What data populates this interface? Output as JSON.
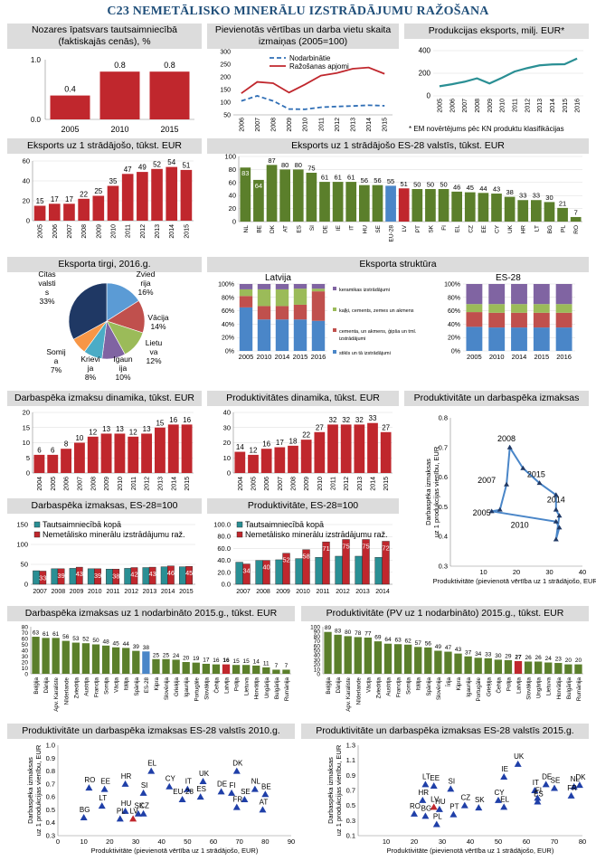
{
  "title": "C23 NEMETĀLISKO MINERĀLU IZSTRĀDĀJUMU RAŽOŠANA",
  "colors": {
    "red": "#c0272d",
    "green": "#5b7f2b",
    "teal": "#2a8f94",
    "blue": "#4a86c8",
    "navy": "#1f3864",
    "header": "#dcdcdc"
  },
  "panels": {
    "p1": {
      "title": "Nozares īpatsvars tautsaimniecībā (faktiskajās cenās), %"
    },
    "p2": {
      "title": "Pievienotās vērtības un darba vietu skaita izmaiņas (2005=100)"
    },
    "p3": {
      "title": "Produkcijas eksports, milj. EUR*",
      "note": "* EM novērtējums pēc KN produktu klasifikācijas"
    },
    "p4": {
      "title": "Eksports uz 1 strādājošo, tūkst. EUR"
    },
    "p5": {
      "title": "Eksports uz 1 strādājošo ES-28 valstīs, tūkst. EUR"
    },
    "p6": {
      "title": "Eksporta tirgi, 2016.g."
    },
    "p7": {
      "title": "Eksporta struktūra",
      "sub_lv": "Latvija",
      "sub_es": "ES-28"
    },
    "p8": {
      "title": "Darbaspēka izmaksu dinamika, tūkst. EUR"
    },
    "p9": {
      "title": "Produktivitātes dinamika, tūkst. EUR"
    },
    "p10": {
      "title": "Produktivitāte un darbaspēka izmaksas"
    },
    "p11": {
      "title": "Darbaspēka izmaksas, ES-28=100"
    },
    "p12": {
      "title": "Produktivitāte, ES-28=100"
    },
    "p13": {
      "title": "Darbaspēka izmaksas uz 1 nodarbināto 2015.g., tūkst. EUR"
    },
    "p14": {
      "title": "Produktivitāte (PV uz 1 nodarbināto) 2015.g., tūkst. EUR"
    },
    "p15": {
      "title": "Produktivitāte un darbaspēka izmaksas ES-28 valstīs 2010.g."
    },
    "p16": {
      "title": "Produktivitāte un darbaspēka izmaksas ES-28 valstīs 2015.g."
    }
  },
  "chart_data": [
    {
      "id": "share",
      "type": "bar",
      "categories": [
        "2005",
        "2010",
        "2015"
      ],
      "values": [
        0.4,
        0.8,
        0.8
      ],
      "ylim": [
        0,
        1.0
      ],
      "yticks": [
        "0.0",
        "1.0"
      ]
    },
    {
      "id": "index",
      "type": "line",
      "x": [
        "2006",
        "2007",
        "2008",
        "2009",
        "2010",
        "2011",
        "2012",
        "2013",
        "2014",
        "2015"
      ],
      "ylim": [
        50,
        300
      ],
      "yticks": [
        50,
        100,
        150,
        200,
        250,
        300
      ],
      "series": [
        {
          "name": "Nodarbinātie",
          "values": [
            105,
            125,
            105,
            73,
            72,
            80,
            83,
            85,
            88,
            86
          ]
        },
        {
          "name": "Ražošanas apjomi",
          "values": [
            135,
            180,
            175,
            138,
            170,
            205,
            215,
            232,
            237,
            212
          ]
        }
      ]
    },
    {
      "id": "export",
      "type": "line",
      "x": [
        "2005",
        "2006",
        "2007",
        "2008",
        "2009",
        "2010",
        "2011",
        "2012",
        "2013",
        "2014",
        "2015",
        "2016"
      ],
      "ylim": [
        0,
        400
      ],
      "yticks": [
        0,
        200,
        400
      ],
      "series": [
        {
          "values": [
            85,
            103,
            125,
            155,
            110,
            160,
            215,
            245,
            270,
            278,
            280,
            330
          ]
        }
      ]
    },
    {
      "id": "exp_worker",
      "type": "bar",
      "categories": [
        "2005",
        "2006",
        "2007",
        "2008",
        "2009",
        "2010",
        "2011",
        "2012",
        "2013",
        "2014",
        "2015"
      ],
      "values": [
        15,
        17,
        17,
        22,
        25,
        35,
        47,
        49,
        52,
        54,
        51
      ],
      "ylim": [
        0,
        60
      ],
      "yticks": [
        0,
        20,
        40,
        60
      ]
    },
    {
      "id": "exp_eu",
      "type": "bar",
      "categories": [
        "NL",
        "BE",
        "DK",
        "AT",
        "ES",
        "SI",
        "DE",
        "IE",
        "IT",
        "HU",
        "SE",
        "EU-28",
        "LV",
        "PT",
        "SK",
        "FI",
        "EL",
        "CZ",
        "EE",
        "CY",
        "UK",
        "HR",
        "LT",
        "BG",
        "PL",
        "RO"
      ],
      "values": [
        83,
        64,
        87,
        80,
        80,
        75,
        61,
        61,
        61,
        56,
        56,
        55,
        51,
        50,
        50,
        50,
        46,
        45,
        44,
        43,
        38,
        33,
        33,
        30,
        21,
        7
      ],
      "ylim": [
        0,
        100
      ],
      "yticks": [
        0,
        20,
        40,
        60,
        80,
        100
      ]
    },
    {
      "id": "markets",
      "type": "pie",
      "labels": [
        "Zviedrija",
        "Vācija",
        "Lietuva",
        "Igaunija",
        "Krievija",
        "Somija",
        "Citas valstis"
      ],
      "values": [
        16,
        14,
        12,
        10,
        8,
        7,
        33
      ],
      "display": [
        "Zvied\nrija\n16%",
        "Vācija\n14%",
        "Lietu\nva\n12%",
        "Igaun\nija\n10%",
        "Krievi\nja\n8%",
        "Somij\na\n7%",
        "Citas\nvalsti\ns\n33%"
      ]
    },
    {
      "id": "struct_lv",
      "type": "bar",
      "stacked": true,
      "categories": [
        "2005",
        "2010",
        "2014",
        "2015",
        "2016"
      ],
      "yticks": [
        "0%",
        "20%",
        "40%",
        "60%",
        "80%",
        "100%"
      ],
      "series": [
        {
          "name": "stikls un tā izstrādājumi",
          "values": [
            65,
            47,
            47,
            47,
            45
          ]
        },
        {
          "name": "cements, un akmens, ģipša un tml. izstrādājumi",
          "values": [
            17,
            20,
            20,
            22,
            44
          ]
        },
        {
          "name": "kaļķi, cements, zemes un akmens",
          "values": [
            10,
            25,
            25,
            24,
            4
          ]
        },
        {
          "name": "keramikas izstrādājumi",
          "values": [
            8,
            8,
            8,
            7,
            7
          ]
        }
      ]
    },
    {
      "id": "struct_eu",
      "type": "bar",
      "stacked": true,
      "categories": [
        "2005",
        "2010",
        "2014",
        "2015",
        "2016"
      ],
      "yticks": [
        "0%",
        "20%",
        "40%",
        "60%",
        "80%",
        "100%"
      ],
      "series": [
        {
          "name": "stikls",
          "values": [
            36,
            35,
            35,
            35,
            35
          ]
        },
        {
          "name": "cements",
          "values": [
            22,
            22,
            22,
            22,
            22
          ]
        },
        {
          "name": "kaļķi",
          "values": [
            12,
            13,
            13,
            13,
            13
          ]
        },
        {
          "name": "keramika",
          "values": [
            30,
            30,
            30,
            30,
            30
          ]
        }
      ]
    },
    {
      "id": "labor_dyn",
      "type": "bar",
      "categories": [
        "2004",
        "2005",
        "2006",
        "2007",
        "2008",
        "2009",
        "2010",
        "2011",
        "2012",
        "2013",
        "2014",
        "2015"
      ],
      "values": [
        6,
        6,
        8,
        10,
        12,
        13,
        13,
        12,
        13,
        15,
        16,
        16
      ],
      "ylim": [
        0,
        20
      ],
      "yticks": [
        0,
        5,
        10,
        15,
        20
      ]
    },
    {
      "id": "prod_dyn",
      "type": "bar",
      "categories": [
        "2004",
        "2005",
        "2006",
        "2007",
        "2008",
        "2009",
        "2010",
        "2011",
        "2012",
        "2013",
        "2014",
        "2015"
      ],
      "values": [
        14,
        12,
        16,
        17,
        18,
        22,
        27,
        32,
        32,
        32,
        33,
        27
      ],
      "ylim": [
        0,
        40
      ],
      "yticks": [
        0,
        10,
        20,
        30,
        40
      ]
    },
    {
      "id": "prod_labor",
      "type": "scatter",
      "xlabel": "Produktivitāte (pievienotā vērtība uz 1 strādājošo, EUR)",
      "ylabel": "Darbaspēka izmaksas uz 1 produkcijas vienību, EUR",
      "xlim": [
        0,
        40
      ],
      "ylim": [
        0.3,
        0.8
      ],
      "points": [
        [
          12.5,
          0.485
        ],
        [
          15,
          0.49
        ],
        [
          17,
          0.575
        ],
        [
          18,
          0.7
        ],
        [
          22,
          0.63
        ],
        [
          27,
          0.58
        ],
        [
          32,
          0.54
        ],
        [
          32,
          0.49
        ],
        [
          33,
          0.47
        ],
        [
          32,
          0.39
        ],
        [
          33,
          0.43
        ],
        [
          32,
          0.45
        ]
      ],
      "labels": [
        {
          "text": "2005",
          "x": 9.5,
          "y": 0.47
        },
        {
          "text": "2007",
          "x": 11,
          "y": 0.58
        },
        {
          "text": "2008",
          "x": 17,
          "y": 0.72
        },
        {
          "text": "2015",
          "x": 26,
          "y": 0.6
        },
        {
          "text": "2014",
          "x": 32,
          "y": 0.515
        },
        {
          "text": "2010",
          "x": 21,
          "y": 0.43
        }
      ]
    },
    {
      "id": "labor_eu",
      "type": "bar",
      "categories": [
        "2007",
        "2008",
        "2009",
        "2010",
        "2011",
        "2012",
        "2013",
        "2014",
        "2015"
      ],
      "ylim": [
        0,
        150
      ],
      "yticks": [
        0,
        50,
        100,
        150
      ],
      "series": [
        {
          "name": "Tautsaimniecībā kopā",
          "values": [
            34,
            39,
            40,
            39,
            38,
            40,
            42,
            44,
            44
          ]
        },
        {
          "name": "Nemetālisko minerālu izstrādājumu raž.",
          "values": [
            33,
            39,
            43,
            39,
            38,
            42,
            43,
            46,
            45
          ]
        }
      ]
    },
    {
      "id": "prod_eu",
      "type": "bar",
      "categories": [
        "2007",
        "2008",
        "2009",
        "2010",
        "2011",
        "2012",
        "2013",
        "2014"
      ],
      "ylim": [
        0,
        100
      ],
      "yticks": [
        "0.0",
        "20.0",
        "40.0",
        "60.0",
        "80.0",
        "100.0"
      ],
      "series": [
        {
          "name": "Tautsaimniecībā kopā",
          "values": [
            37,
            40,
            41,
            43,
            45,
            47,
            47,
            45
          ]
        },
        {
          "name": "Nemetālisko minerālu izstrādājumu raž.",
          "values": [
            34,
            40,
            52,
            58,
            71,
            75,
            75,
            72
          ]
        }
      ]
    },
    {
      "id": "labor_2015",
      "type": "bar",
      "categories": [
        "Beļģija",
        "Dānija",
        "Apv. Karaliste",
        "Nīderlande",
        "Zviedrija",
        "Austrija",
        "Francija",
        "Somija",
        "Vācija",
        "Itālija",
        "Spānija",
        "ES-28",
        "Kipra",
        "Slovēnija",
        "Grieķija",
        "Igaunija",
        "Portugāle",
        "Slovākija",
        "Čehija",
        "Latvija",
        "Polija",
        "Lietuva",
        "Horvātija",
        "Ungārija",
        "Bulgārija",
        "Rumānija"
      ],
      "values": [
        63,
        61,
        61,
        56,
        53,
        52,
        50,
        48,
        45,
        44,
        39,
        38,
        25,
        25,
        24,
        20,
        19,
        17,
        16,
        16,
        15,
        15,
        14,
        11,
        7,
        7
      ],
      "highlight": {
        "ES-28": "blue",
        "Latvija": "red"
      },
      "ylim": [
        0,
        80
      ],
      "yticks": [
        0,
        10,
        20,
        30,
        40,
        50,
        60,
        70,
        80
      ]
    },
    {
      "id": "prod_2015",
      "type": "bar",
      "categories": [
        "Beļģija",
        "Dānija",
        "Apv. Karaliste",
        "Nīderlande",
        "Vācija",
        "Zviedrija",
        "Austrija",
        "Francija",
        "Somija",
        "Itālija",
        "Spānija",
        "Slovēnija",
        "Īrija",
        "Kipra",
        "Igaunija",
        "Portugāle",
        "Grieķija",
        "Čehija",
        "Polija",
        "Latvija",
        "Slovākija",
        "Ungārija",
        "Lietuva",
        "Horvātija",
        "Bulgārija",
        "Rumānija"
      ],
      "values": [
        89,
        83,
        80,
        78,
        77,
        69,
        64,
        63,
        62,
        57,
        56,
        49,
        47,
        43,
        37,
        34,
        33,
        30,
        29,
        27,
        26,
        26,
        24,
        23,
        20,
        20
      ],
      "highlight": {
        "Latvija": "red"
      },
      "ylim": [
        0,
        100
      ],
      "yticks": [
        0,
        10,
        20,
        30,
        40,
        50,
        60,
        70,
        80,
        90,
        100
      ]
    },
    {
      "id": "eu_2010",
      "type": "scatter",
      "xlabel": "Produktivitāte (pievienotā vērtība uz 1 strādājošo, EUR)",
      "ylabel": "Darbaspēka izmaksas uz 1 produkcijas vienību, EUR",
      "xlim": [
        0,
        90
      ],
      "ylim": [
        0.3,
        1.0
      ],
      "points": [
        {
          "l": "RO",
          "x": 12,
          "y": 0.67
        },
        {
          "l": "EE",
          "x": 18,
          "y": 0.66
        },
        {
          "l": "HR",
          "x": 26,
          "y": 0.7
        },
        {
          "l": "EL",
          "x": 36,
          "y": 0.8
        },
        {
          "l": "SI",
          "x": 33,
          "y": 0.63
        },
        {
          "l": "LT",
          "x": 17,
          "y": 0.53
        },
        {
          "l": "HU",
          "x": 26,
          "y": 0.49
        },
        {
          "l": "SK",
          "x": 31,
          "y": 0.47
        },
        {
          "l": "CZ",
          "x": 33,
          "y": 0.47
        },
        {
          "l": "BG",
          "x": 10,
          "y": 0.44
        },
        {
          "l": "PL",
          "x": 24,
          "y": 0.43
        },
        {
          "l": "LV",
          "x": 29,
          "y": 0.43,
          "red": true
        },
        {
          "l": "CY",
          "x": 43,
          "y": 0.68
        },
        {
          "l": "IT",
          "x": 50,
          "y": 0.66
        },
        {
          "l": "EU-28",
          "x": 48,
          "y": 0.58
        },
        {
          "l": "UK",
          "x": 56,
          "y": 0.72
        },
        {
          "l": "ES",
          "x": 55,
          "y": 0.6
        },
        {
          "l": "DE",
          "x": 63,
          "y": 0.64
        },
        {
          "l": "FI",
          "x": 67,
          "y": 0.63
        },
        {
          "l": "DK",
          "x": 69,
          "y": 0.8
        },
        {
          "l": "NL",
          "x": 76,
          "y": 0.66
        },
        {
          "l": "BE",
          "x": 80,
          "y": 0.62
        },
        {
          "l": "SE",
          "x": 72,
          "y": 0.58
        },
        {
          "l": "FR",
          "x": 69,
          "y": 0.52
        },
        {
          "l": "AT",
          "x": 79,
          "y": 0.5
        }
      ]
    },
    {
      "id": "eu_2015",
      "type": "scatter",
      "xlabel": "Produktivitāte (pievienotā vērtība uz 1 strādājošo, EUR)",
      "ylabel": "Darbaspēka izmaksas uz 1 produkcijas vienību, EUR",
      "xlim": [
        0,
        80
      ],
      "ylim": [
        0.1,
        1.3
      ],
      "points": [
        {
          "l": "RO",
          "x": 20,
          "y": 0.39
        },
        {
          "l": "BG",
          "x": 24,
          "y": 0.36
        },
        {
          "l": "PL",
          "x": 28,
          "y": 0.25
        },
        {
          "l": "HR",
          "x": 23,
          "y": 0.57
        },
        {
          "l": "LT",
          "x": 24,
          "y": 0.78
        },
        {
          "l": "EE",
          "x": 27,
          "y": 0.76
        },
        {
          "l": "LV",
          "x": 27,
          "y": 0.48,
          "red": true
        },
        {
          "l": "HU",
          "x": 29,
          "y": 0.45
        },
        {
          "l": "PT",
          "x": 34,
          "y": 0.38
        },
        {
          "l": "SI",
          "x": 33,
          "y": 0.72
        },
        {
          "l": "CZ",
          "x": 38,
          "y": 0.5
        },
        {
          "l": "SK",
          "x": 43,
          "y": 0.47
        },
        {
          "l": "CY",
          "x": 50,
          "y": 0.57
        },
        {
          "l": "EL",
          "x": 52,
          "y": 0.48
        },
        {
          "l": "IE",
          "x": 52,
          "y": 0.88
        },
        {
          "l": "UK",
          "x": 57,
          "y": 1.05
        },
        {
          "l": "IT",
          "x": 63,
          "y": 0.7
        },
        {
          "l": "ES",
          "x": 64,
          "y": 0.55
        },
        {
          "l": "FI",
          "x": 64,
          "y": 0.6
        },
        {
          "l": "DE",
          "x": 67,
          "y": 0.78
        },
        {
          "l": "SE",
          "x": 70,
          "y": 0.73
        },
        {
          "l": "NL",
          "x": 77,
          "y": 0.75
        },
        {
          "l": "DK",
          "x": 79,
          "y": 0.77
        },
        {
          "l": "FR",
          "x": 76,
          "y": 0.63
        }
      ]
    }
  ]
}
